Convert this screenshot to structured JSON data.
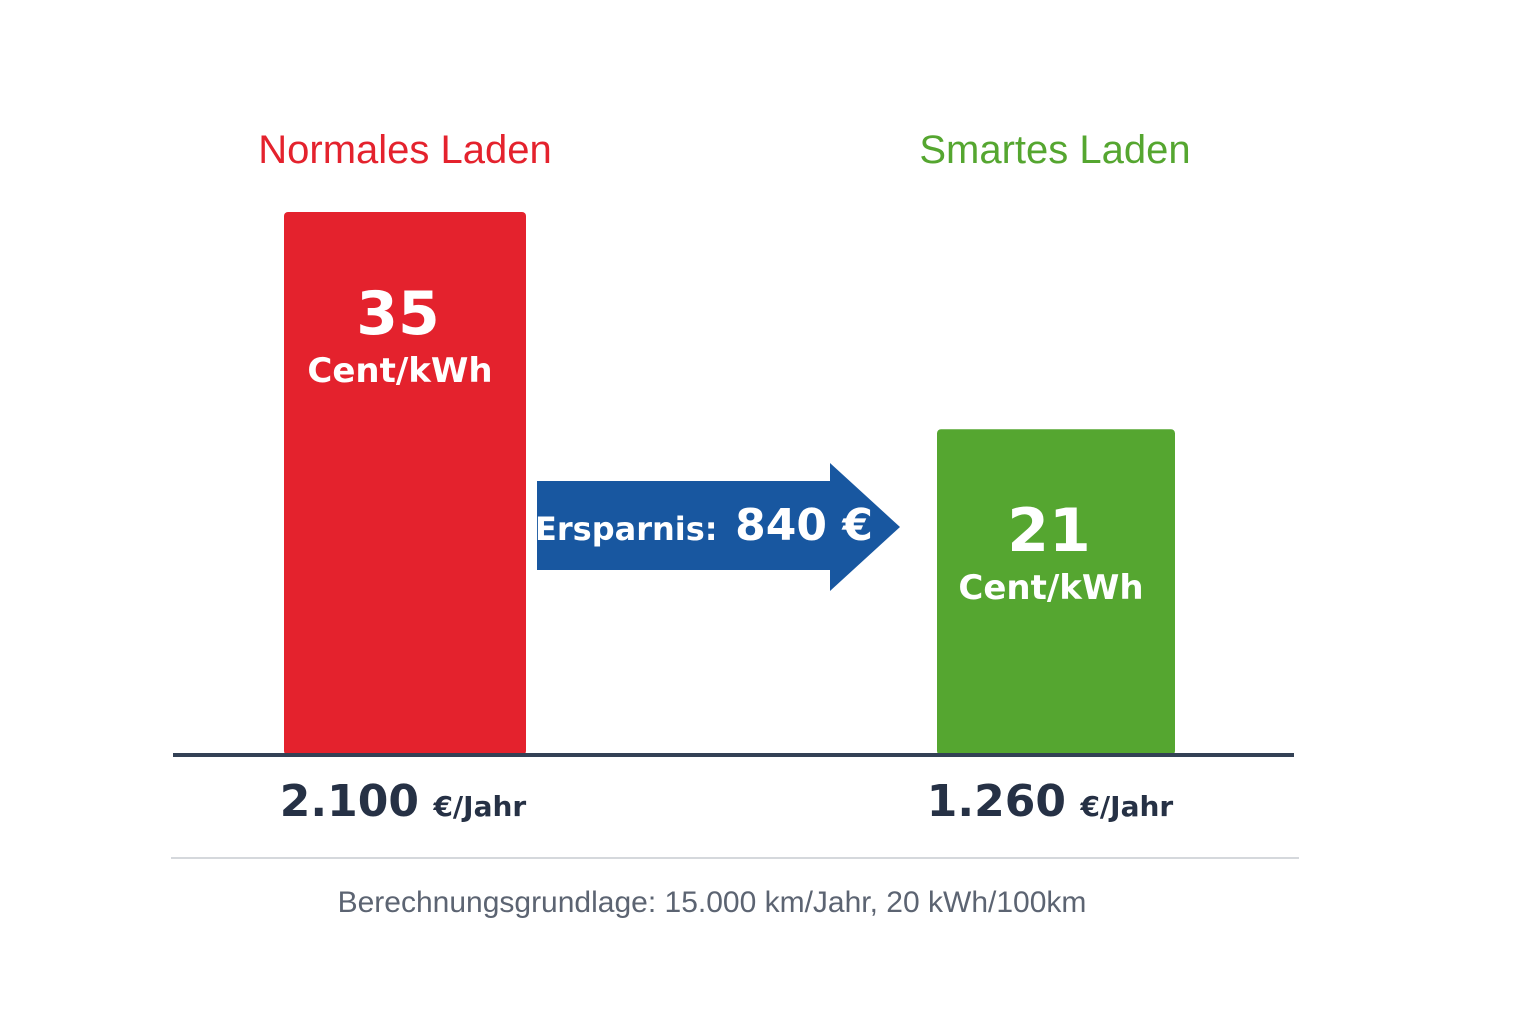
{
  "chart_data": {
    "type": "bar",
    "categories": [
      "Normales Laden",
      "Smartes Laden"
    ],
    "values": [
      35,
      21
    ],
    "value_unit": "Cent/kWh",
    "annual_costs": [
      {
        "amount": "2.100",
        "unit": "€/Jahr"
      },
      {
        "amount": "1.260",
        "unit": "€/Jahr"
      }
    ],
    "savings_label": "Ersparnis:",
    "savings_value": "840 €",
    "footnote": "Berechnungsgrundlage: 15.000 km/Jahr, 20 kWh/100km",
    "ylim": [
      0,
      35
    ],
    "grid": false,
    "colors": {
      "normal": "#e4222d",
      "smart": "#55a630",
      "arrow": "#1857a0",
      "baseline": "#334155",
      "text_dark": "#263145",
      "footnote": "#5c6472",
      "rule": "#d5d8dc"
    }
  }
}
